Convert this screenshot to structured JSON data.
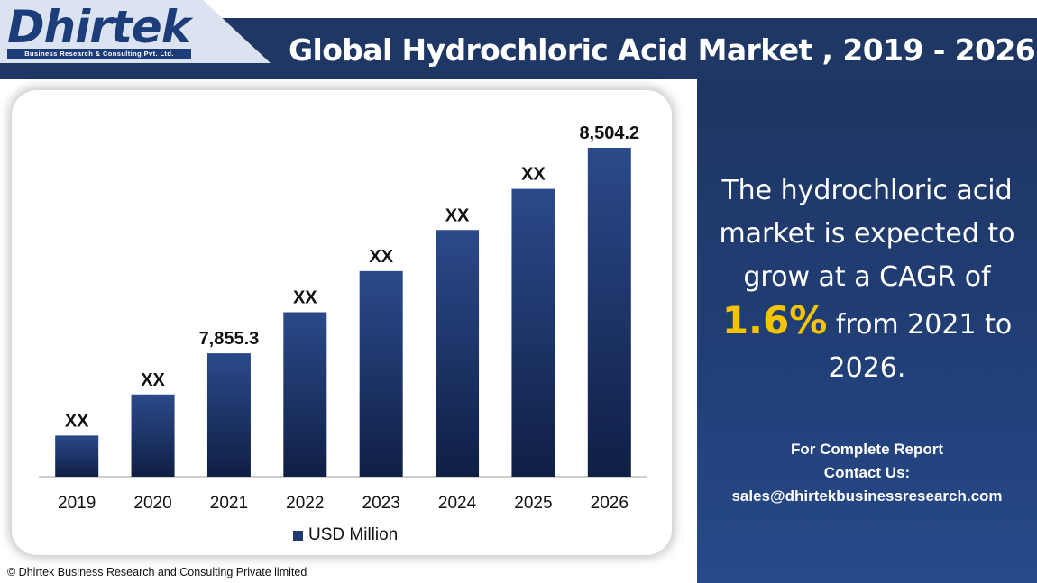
{
  "header": {
    "logo_text": "Dhirtek",
    "logo_tagline": "Business Research & Consulting Pvt. Ltd.",
    "title": "Global Hydrochloric Acid Market , 2019 - 2026"
  },
  "panel": {
    "line1": "The hydrochloric acid",
    "line2": "market is expected to",
    "line3": "grow at a CAGR of",
    "cagr": "1.6%",
    "line4_suffix": " from 2021 to",
    "line5": "2026.",
    "contact_line1": "For Complete Report",
    "contact_line2": "Contact Us:",
    "contact_email": "sales@dhirtekbusinessresearch.com"
  },
  "footer": {
    "copyright": "© Dhirtek Business Research and Consulting Private limited"
  },
  "colors": {
    "header_bg": "#1f3764",
    "panel_bg": "#213f77",
    "accent": "#f5c400",
    "bar_top": "#2b4a8a",
    "bar_bottom": "#0f1f45"
  },
  "chart_data": {
    "type": "bar",
    "categories": [
      "2019",
      "2020",
      "2021",
      "2022",
      "2023",
      "2024",
      "2025",
      "2026"
    ],
    "series": [
      {
        "name": "USD Million",
        "values": [
          null,
          null,
          7855.3,
          null,
          null,
          null,
          null,
          8504.2
        ],
        "data_labels": [
          "XX",
          "XX",
          "7,855.3",
          "XX",
          "XX",
          "XX",
          "XX",
          "8,504.2"
        ],
        "relative_height": [
          0.125,
          0.25,
          0.375,
          0.5,
          0.625,
          0.75,
          0.875,
          1.0
        ]
      }
    ],
    "title": "",
    "xlabel": "",
    "ylabel": "",
    "legend": "bottom",
    "grid": false
  }
}
